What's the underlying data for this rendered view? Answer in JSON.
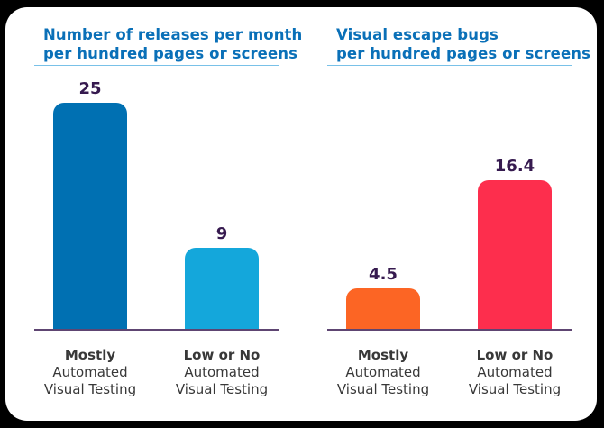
{
  "styles": {
    "page_background": "#000000",
    "card_background": "#FFFFFF",
    "title_color": "#0A70B8",
    "underline_color": "#79C1E8",
    "value_label_color": "#361A4F",
    "axis_color": "#5E4572",
    "category_color": "#383838"
  },
  "chart_data": [
    {
      "type": "bar",
      "title": "Number of releases per month per hundred pages or screens",
      "title_lines": [
        "Number of releases per month",
        "per hundred pages or screens"
      ],
      "categories": [
        "Mostly Automated Visual Testing",
        "Low or No Automated Visual Testing"
      ],
      "category_lines": [
        [
          "Mostly",
          "Automated",
          "Visual Testing"
        ],
        [
          "Low or No",
          "Automated",
          "Visual Testing"
        ]
      ],
      "values": [
        25,
        9
      ],
      "value_labels": [
        "25",
        "9"
      ],
      "bar_colors": [
        "#0070B2",
        "#14A7DB"
      ],
      "xlabel": "",
      "ylabel": "",
      "ylim": [
        0,
        26
      ],
      "grid": false,
      "legend": "none",
      "value_labels_position": "above-bars"
    },
    {
      "type": "bar",
      "title": "Visual escape bugs per hundred pages or screens",
      "title_lines": [
        "Visual escape bugs",
        "per hundred pages or screens"
      ],
      "categories": [
        "Mostly Automated Visual Testing",
        "Low or No Automated Visual Testing"
      ],
      "category_lines": [
        [
          "Mostly",
          "Automated",
          "Visual Testing"
        ],
        [
          "Low or No",
          "Automated",
          "Visual Testing"
        ]
      ],
      "values": [
        4.5,
        16.4
      ],
      "value_labels": [
        "4.5",
        "16.4"
      ],
      "bar_colors": [
        "#FC6524",
        "#FD2E4D"
      ],
      "xlabel": "",
      "ylabel": "",
      "ylim": [
        0,
        26
      ],
      "grid": false,
      "legend": "none",
      "value_labels_position": "above-bars"
    }
  ]
}
